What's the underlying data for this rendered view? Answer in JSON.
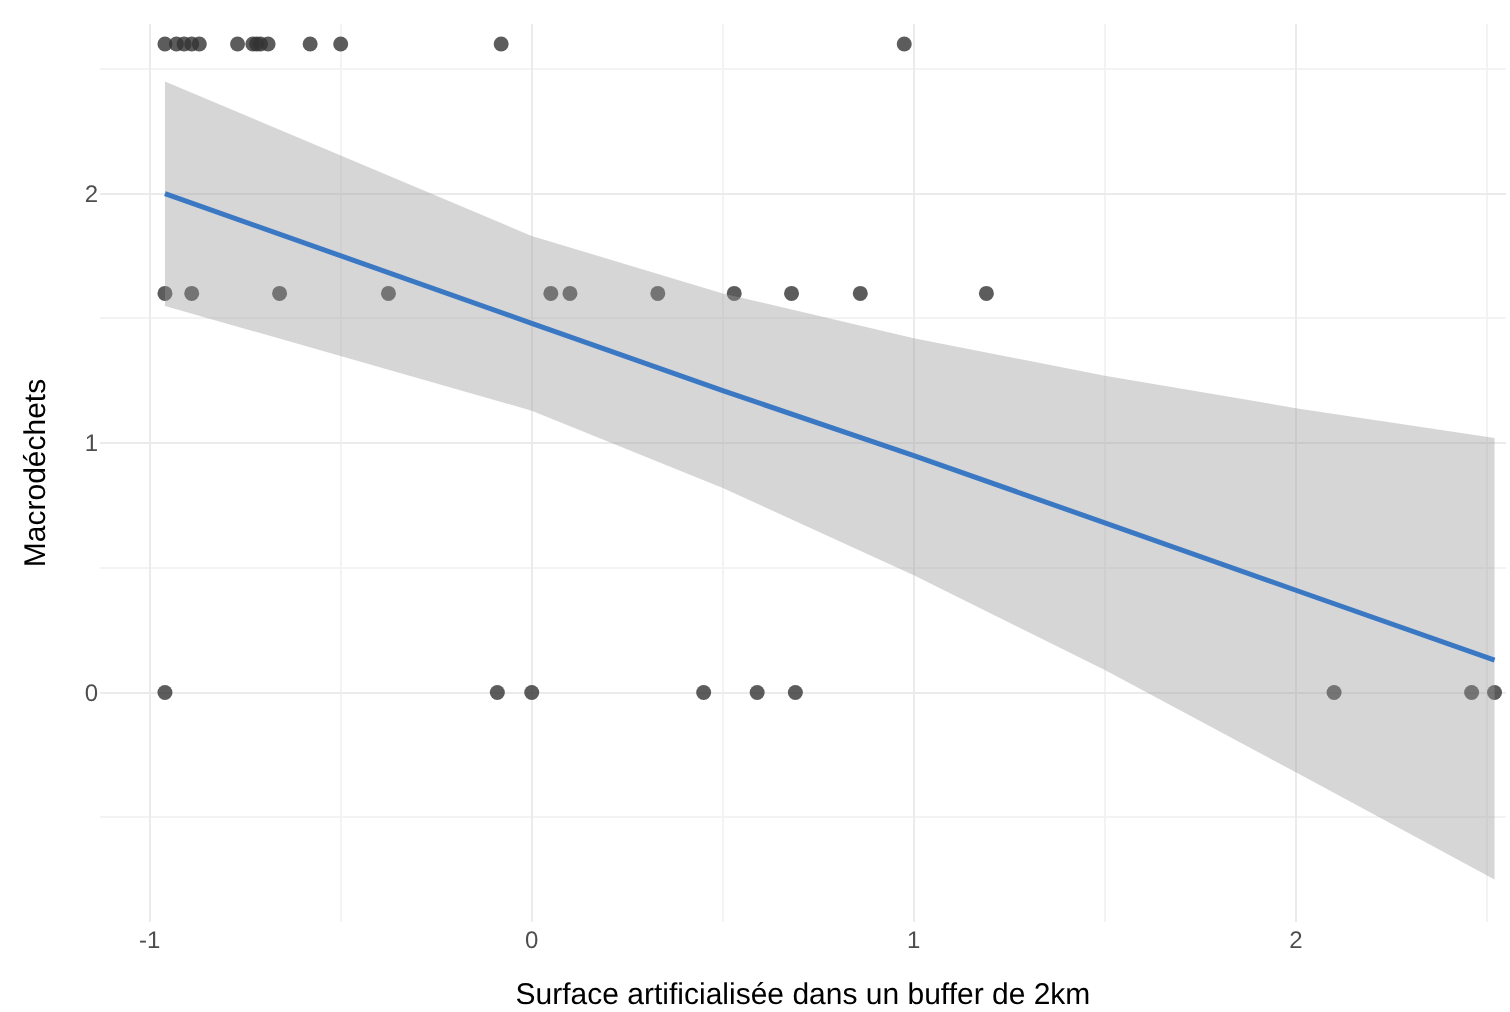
{
  "chart_data": {
    "type": "scatter",
    "xlabel": "Surface artificialisée dans un buffer de 2km",
    "ylabel": "Macrodéchets",
    "xlim": [
      -1.13,
      2.55
    ],
    "ylim": [
      -0.92,
      2.68
    ],
    "xticks": [
      -1,
      0,
      1,
      2
    ],
    "yticks": [
      0,
      1,
      2
    ],
    "grid": true,
    "marker": "circle",
    "series": [
      {
        "color": "#333333",
        "x": [
          -0.96,
          -0.93,
          -0.91,
          -0.89,
          -0.87,
          -0.77,
          -0.73,
          -0.72,
          -0.71,
          -0.69,
          -0.58,
          -0.5,
          -0.08,
          0.975,
          -0.96,
          -0.89,
          -0.66,
          -0.375,
          0.05,
          0.1,
          0.33,
          0.53,
          0.68,
          0.86,
          1.19,
          -0.96,
          -0.09,
          0.0,
          0.45,
          0.59,
          0.69,
          2.1,
          2.46,
          2.52
        ],
        "values": [
          2.6,
          2.6,
          2.6,
          2.6,
          2.6,
          2.6,
          2.6,
          2.6,
          2.6,
          2.6,
          2.6,
          2.6,
          2.6,
          2.6,
          1.6,
          1.6,
          1.6,
          1.6,
          1.6,
          1.6,
          1.6,
          1.6,
          1.6,
          1.6,
          1.6,
          0,
          0,
          0,
          0,
          0,
          0,
          0,
          0,
          0
        ]
      },
      {
        "type": "line",
        "color": "#3a78c4",
        "line_style": "solid",
        "marker": "none",
        "x": [
          -0.96,
          0,
          0.5,
          1,
          1.5,
          2,
          2.52
        ],
        "values": [
          2.0,
          1.48,
          1.21,
          0.95,
          0.68,
          0.41,
          0.13
        ],
        "lower": [
          1.55,
          1.13,
          0.82,
          0.47,
          0.09,
          -0.32,
          -0.75
        ],
        "upper": [
          2.45,
          1.83,
          1.6,
          1.42,
          1.27,
          1.14,
          1.02
        ]
      }
    ]
  }
}
